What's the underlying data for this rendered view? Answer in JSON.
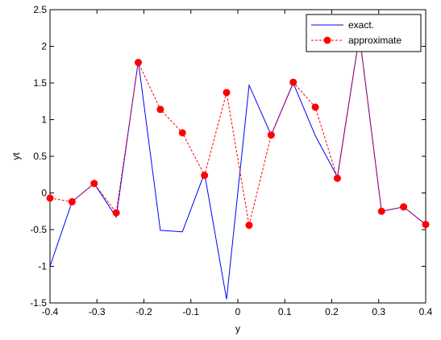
{
  "chart_data": {
    "type": "line",
    "xlabel": "y",
    "ylabel": "yt",
    "x": [
      -0.4,
      -0.353,
      -0.306,
      -0.259,
      -0.212,
      -0.165,
      -0.118,
      -0.071,
      -0.024,
      0.024,
      0.071,
      0.118,
      0.165,
      0.212,
      0.259,
      0.306,
      0.353,
      0.4
    ],
    "series": [
      {
        "name": "exact.",
        "color": "#0000ff",
        "style": "solid",
        "marker": false,
        "values": [
          -1.0,
          -0.12,
          0.13,
          -0.33,
          1.8,
          -0.51,
          -0.53,
          0.27,
          -1.45,
          1.47,
          0.79,
          1.5,
          0.78,
          0.22,
          2.15,
          -0.25,
          -0.19,
          -0.43
        ]
      },
      {
        "name": "approximate",
        "color": "#ff0000",
        "style": "dashed",
        "marker": true,
        "values": [
          -0.07,
          -0.12,
          0.13,
          -0.27,
          1.78,
          1.14,
          0.82,
          0.24,
          1.37,
          -0.44,
          0.79,
          1.51,
          1.17,
          0.2,
          2.15,
          -0.25,
          -0.19,
          -0.43
        ]
      }
    ],
    "xlim": [
      -0.4,
      0.4
    ],
    "xticks": [
      -0.4,
      -0.3,
      -0.2,
      -0.1,
      0,
      0.1,
      0.2,
      0.3,
      0.4
    ],
    "ylim": [
      -1.5,
      2.5
    ],
    "yticks": [
      -1.5,
      -1,
      -0.5,
      0,
      0.5,
      1,
      1.5,
      2,
      2.5
    ],
    "grid": false,
    "legend": "top-right"
  }
}
